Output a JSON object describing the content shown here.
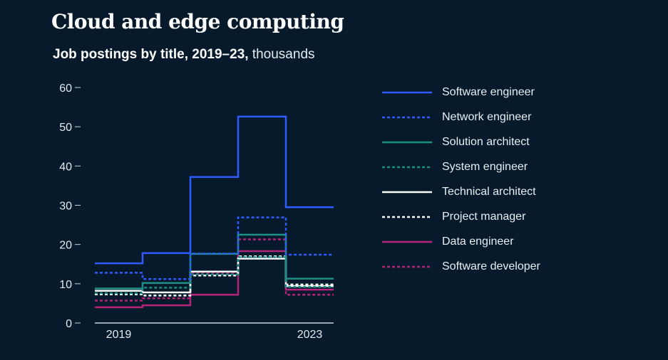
{
  "title": "Cloud and edge computing",
  "subtitle": {
    "bold": "Job postings by title, 2019–23,",
    "unit": "thousands"
  },
  "colors": {
    "background": "#061a2b",
    "software_engineer": "#2f5cff",
    "network_engineer": "#2f5cff",
    "solution_architect": "#1e8f86",
    "system_engineer": "#1e8f86",
    "technical_architect": "#ffffff",
    "project_manager": "#ffffff",
    "data_engineer": "#b5247a",
    "software_developer": "#b5247a"
  },
  "chart_data": {
    "type": "line",
    "style": "step",
    "title": "Cloud and edge computing",
    "subtitle": "Job postings by title, 2019–23, thousands",
    "x": [
      2019,
      2020,
      2021,
      2022,
      2023
    ],
    "x_tick_labels": [
      "2019",
      "",
      "",
      "",
      "2023"
    ],
    "ylim": [
      0,
      60
    ],
    "y_ticks": [
      0,
      10,
      20,
      30,
      40,
      50,
      60
    ],
    "grid": false,
    "legend_position": "right",
    "series": [
      {
        "name": "Software engineer",
        "values": [
          15.2,
          17.8,
          37.2,
          52.6,
          29.5
        ],
        "color": "#2f5cff",
        "dash": false
      },
      {
        "name": "Network engineer",
        "values": [
          12.8,
          11.2,
          17.7,
          26.9,
          17.4
        ],
        "color": "#2f5cff",
        "dash": true
      },
      {
        "name": "Solution architect",
        "values": [
          8.8,
          10.2,
          17.6,
          22.5,
          11.3
        ],
        "color": "#1e8f86",
        "dash": false
      },
      {
        "name": "System engineer",
        "values": [
          7.6,
          9.0,
          12.4,
          16.8,
          9.2
        ],
        "color": "#1e8f86",
        "dash": true
      },
      {
        "name": "Technical architect",
        "values": [
          8.2,
          7.8,
          13.1,
          16.4,
          9.4
        ],
        "color": "#ffffff",
        "dash": false
      },
      {
        "name": "Project manager",
        "values": [
          7.3,
          7.0,
          12.1,
          17.0,
          9.8
        ],
        "color": "#ffffff",
        "dash": true
      },
      {
        "name": "Data engineer",
        "values": [
          4.0,
          4.5,
          7.2,
          18.3,
          8.5
        ],
        "color": "#b5247a",
        "dash": false
      },
      {
        "name": "Software developer",
        "values": [
          5.7,
          6.3,
          12.8,
          21.3,
          7.2
        ],
        "color": "#b5247a",
        "dash": true
      }
    ]
  }
}
